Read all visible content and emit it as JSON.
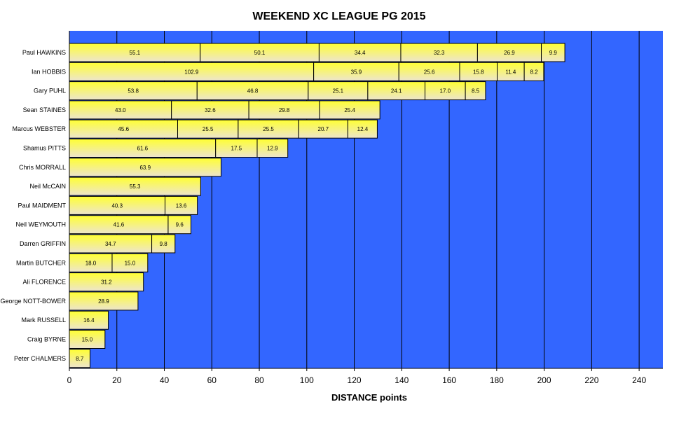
{
  "chart_data": {
    "type": "bar",
    "orientation": "horizontal",
    "stacked": true,
    "title": "WEEKEND XC LEAGUE PG 2015",
    "xlabel": "DISTANCE  points",
    "xlim": [
      0,
      250
    ],
    "xticks": [
      0,
      20,
      40,
      60,
      80,
      100,
      120,
      140,
      160,
      180,
      200,
      220,
      240
    ],
    "grid": "vertical",
    "legend": "none",
    "rows": [
      {
        "name": "Paul HAWKINS",
        "segments": [
          55.1,
          50.1,
          34.4,
          32.3,
          26.9,
          9.9
        ]
      },
      {
        "name": "Ian HOBBIS",
        "segments": [
          102.9,
          35.9,
          25.6,
          15.8,
          11.4,
          8.2
        ]
      },
      {
        "name": "Gary PUHL",
        "segments": [
          53.8,
          46.8,
          25.1,
          24.1,
          17.0,
          8.5
        ]
      },
      {
        "name": "Sean STAINES",
        "segments": [
          43.0,
          32.6,
          29.8,
          25.4
        ]
      },
      {
        "name": "Marcus WEBSTER",
        "segments": [
          45.6,
          25.5,
          25.5,
          20.7,
          12.4
        ]
      },
      {
        "name": "Shamus PITTS",
        "segments": [
          61.6,
          17.5,
          12.9
        ]
      },
      {
        "name": "Chris MORRALL",
        "segments": [
          63.9
        ]
      },
      {
        "name": "Neil McCAIN",
        "segments": [
          55.3
        ]
      },
      {
        "name": "Paul MAIDMENT",
        "segments": [
          40.3,
          13.6
        ]
      },
      {
        "name": "Neil WEYMOUTH",
        "segments": [
          41.6,
          9.6
        ]
      },
      {
        "name": "Darren GRIFFIN",
        "segments": [
          34.7,
          9.8
        ]
      },
      {
        "name": "Martin BUTCHER",
        "segments": [
          18.0,
          15.0
        ]
      },
      {
        "name": "Ali FLORENCE",
        "segments": [
          31.2
        ]
      },
      {
        "name": "George NOTT-BOWER",
        "segments": [
          28.9
        ]
      },
      {
        "name": "Mark RUSSELL",
        "segments": [
          16.4
        ]
      },
      {
        "name": "Craig BYRNE",
        "segments": [
          15.0
        ]
      },
      {
        "name": "Peter CHALMERS",
        "segments": [
          8.7
        ]
      }
    ]
  },
  "colors": {
    "plot_background": "#3366ff",
    "bar_top": "#ffff33",
    "bar_bottom": "#ede5cc",
    "grid": "#000000",
    "bar_border": "#000000"
  }
}
